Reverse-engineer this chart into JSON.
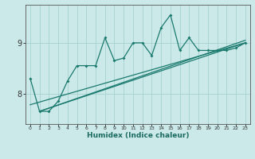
{
  "xlabel": "Humidex (Indice chaleur)",
  "bg_color": "#cce9e9",
  "grid_color": "#aad4d4",
  "line_color": "#1a7a6e",
  "xdata": [
    0,
    1,
    2,
    3,
    4,
    5,
    6,
    7,
    8,
    9,
    10,
    11,
    12,
    13,
    14,
    15,
    16,
    17,
    18,
    19,
    20,
    21,
    22,
    23
  ],
  "ydata_main": [
    8.3,
    7.65,
    7.65,
    7.85,
    8.25,
    8.55,
    8.55,
    8.55,
    9.1,
    8.65,
    8.7,
    9.0,
    9.0,
    8.75,
    9.3,
    9.55,
    8.85,
    9.1,
    8.85,
    8.85,
    8.85,
    8.85,
    8.9,
    9.0
  ],
  "ylim": [
    7.4,
    9.75
  ],
  "yticks": [
    8,
    9
  ],
  "xlim": [
    -0.5,
    23.5
  ],
  "xticks": [
    0,
    1,
    2,
    3,
    4,
    5,
    6,
    7,
    8,
    9,
    10,
    11,
    12,
    13,
    14,
    15,
    16,
    17,
    18,
    19,
    20,
    21,
    22,
    23
  ],
  "trend1_x": [
    1,
    23
  ],
  "trend1_y": [
    7.65,
    9.0
  ],
  "trend2_x": [
    1,
    23
  ],
  "trend2_y": [
    7.65,
    9.05
  ],
  "trend3_x": [
    0,
    23
  ],
  "trend3_y": [
    7.78,
    9.0
  ]
}
